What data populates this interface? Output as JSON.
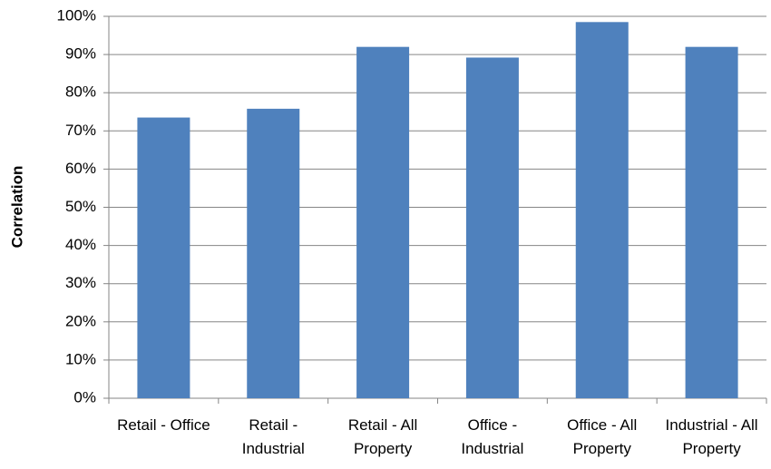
{
  "chart_data": {
    "type": "bar",
    "y_label": "Correlation",
    "categories": [
      "Retail - Office",
      "Retail - Industrial",
      "Retail - All Property",
      "Office - Industrial",
      "Office - All Property",
      "Industrial - All Property"
    ],
    "values": [
      73.5,
      75.8,
      92,
      89.2,
      98.5,
      92
    ],
    "color": "#4f81bd",
    "ylim": [
      0,
      100
    ],
    "yticks": [
      {
        "value": 0,
        "label": "0%"
      },
      {
        "value": 10,
        "label": "10%"
      },
      {
        "value": 20,
        "label": "20%"
      },
      {
        "value": 30,
        "label": "30%"
      },
      {
        "value": 40,
        "label": "40%"
      },
      {
        "value": 50,
        "label": "50%"
      },
      {
        "value": 60,
        "label": "60%"
      },
      {
        "value": 70,
        "label": "70%"
      },
      {
        "value": 80,
        "label": "80%"
      },
      {
        "value": 90,
        "label": "90%"
      },
      {
        "value": 100,
        "label": "100%"
      }
    ],
    "grid": true
  }
}
